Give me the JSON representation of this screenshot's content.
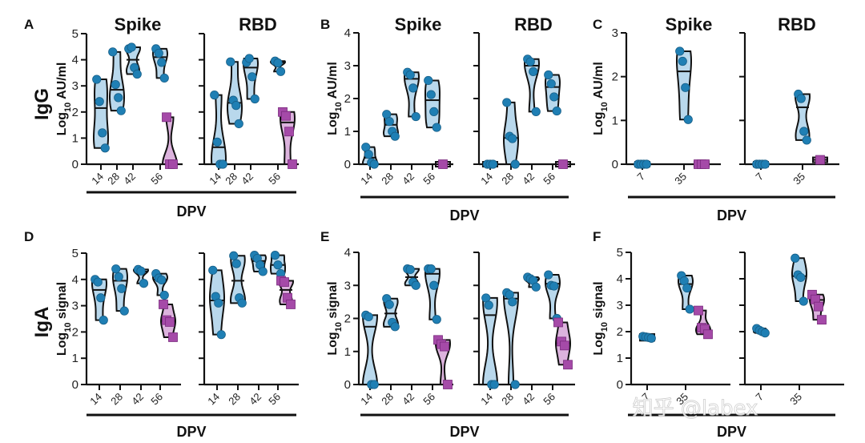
{
  "figure": {
    "row_labels": [
      "IgG",
      "IgA"
    ],
    "watermark": "知乎 @labex",
    "colors": {
      "circle_fill": "#1f7fb4",
      "circle_violin": "#b9d8ec",
      "square_fill": "#a54aa8",
      "square_violin": "#dcb3dd",
      "axis": "#111111"
    }
  },
  "chart_data": [
    {
      "type": "violin",
      "panel": "A",
      "row": "IgG",
      "ylabel": "Log10 AU/ml",
      "xlabel": "DPV",
      "ylim": [
        0,
        5
      ],
      "yticks": [
        0,
        1,
        2,
        3,
        4,
        5
      ],
      "show_tick_labels": true,
      "subplots": [
        {
          "title": "Spike",
          "categories": [
            "14",
            "28",
            "42",
            "56"
          ],
          "groups": [
            {
              "x": "14",
              "marker": "circle",
              "values": [
                3.25,
                2.4,
                1.2,
                0.62
              ],
              "median": 2.15
            },
            {
              "x": "28",
              "marker": "circle",
              "values": [
                4.3,
                3.05,
                2.55,
                2.05
              ],
              "median": 2.85
            },
            {
              "x": "42",
              "marker": "circle",
              "values": [
                4.42,
                4.48,
                3.7,
                3.45
              ],
              "median": 4.0
            },
            {
              "x": "56",
              "marker": "circle",
              "values": [
                4.42,
                4.25,
                3.9,
                3.3
              ],
              "median": 4.1
            },
            {
              "x": "56",
              "marker": "square",
              "values": [
                1.8,
                0.0,
                0.0
              ],
              "median": 0.0
            }
          ]
        },
        {
          "title": "RBD",
          "categories": [
            "14",
            "28",
            "42",
            "56"
          ],
          "groups": [
            {
              "x": "14",
              "marker": "circle",
              "values": [
                2.65,
                0.85,
                0.0,
                0.0
              ],
              "median": 0.65
            },
            {
              "x": "28",
              "marker": "circle",
              "values": [
                3.92,
                2.45,
                2.25,
                1.55
              ],
              "median": 2.35
            },
            {
              "x": "42",
              "marker": "circle",
              "values": [
                3.9,
                4.05,
                3.35,
                2.5
              ],
              "median": 3.7
            },
            {
              "x": "56",
              "marker": "circle",
              "values": [
                3.95,
                3.88,
                3.55
              ],
              "median": 3.9
            },
            {
              "x": "56",
              "marker": "square",
              "values": [
                2.0,
                1.85,
                1.25,
                0.0
              ],
              "median": 1.6
            }
          ]
        }
      ]
    },
    {
      "type": "violin",
      "panel": "B",
      "row": "IgG",
      "ylabel": "Log10 AU/ml",
      "xlabel": "DPV",
      "ylim": [
        0,
        4
      ],
      "yticks": [
        0,
        1,
        2,
        3,
        4
      ],
      "show_tick_labels": true,
      "subplots": [
        {
          "title": "Spike",
          "categories": [
            "14",
            "28",
            "42",
            "56"
          ],
          "groups": [
            {
              "x": "14",
              "marker": "circle",
              "values": [
                0.52,
                0.3,
                0.05,
                0.0
              ],
              "median": 0.2
            },
            {
              "x": "28",
              "marker": "circle",
              "values": [
                1.52,
                1.3,
                1.0,
                0.85
              ],
              "median": 1.2
            },
            {
              "x": "42",
              "marker": "circle",
              "values": [
                2.8,
                2.72,
                2.32,
                1.45
              ],
              "median": 2.6
            },
            {
              "x": "56",
              "marker": "circle",
              "values": [
                2.55,
                2.12,
                1.6,
                1.12
              ],
              "median": 1.95
            },
            {
              "x": "56",
              "marker": "square",
              "values": [
                0.0
              ],
              "median": 0.0
            }
          ]
        },
        {
          "title": "RBD",
          "categories": [
            "14",
            "28",
            "42",
            "56"
          ],
          "groups": [
            {
              "x": "14",
              "marker": "circle",
              "values": [
                0.0,
                0.0,
                0.0
              ],
              "median": 0.0
            },
            {
              "x": "28",
              "marker": "circle",
              "values": [
                1.88,
                0.85,
                0.78,
                0.0
              ],
              "median": 0.8
            },
            {
              "x": "42",
              "marker": "circle",
              "values": [
                3.2,
                3.12,
                2.82,
                1.6
              ],
              "median": 3.0
            },
            {
              "x": "56",
              "marker": "circle",
              "values": [
                2.72,
                2.45,
                2.05,
                1.62
              ],
              "median": 2.35
            },
            {
              "x": "56",
              "marker": "square",
              "values": [
                0.0
              ],
              "median": 0.0
            }
          ]
        }
      ]
    },
    {
      "type": "violin",
      "panel": "C",
      "row": "IgG",
      "ylabel": "Log10 AU/ml",
      "xlabel": "DPV",
      "ylim": [
        0,
        3
      ],
      "yticks": [
        0,
        1,
        2,
        3
      ],
      "show_tick_labels": true,
      "subplots": [
        {
          "title": "Spike",
          "categories": [
            "7",
            "35"
          ],
          "groups": [
            {
              "x": "7",
              "marker": "circle",
              "values": [
                0.0,
                0.0,
                0.0,
                0.0
              ],
              "median": 0.0
            },
            {
              "x": "35",
              "marker": "circle",
              "values": [
                2.58,
                2.35,
                1.75,
                1.02
              ],
              "median": 2.12
            },
            {
              "x": "35",
              "marker": "square",
              "values": [
                0.0,
                0.0,
                0.0
              ],
              "median": 0.0
            }
          ]
        },
        {
          "title": "RBD",
          "categories": [
            "7",
            "35"
          ],
          "groups": [
            {
              "x": "7",
              "marker": "circle",
              "values": [
                0.0,
                0.0,
                0.0,
                0.0
              ],
              "median": 0.0
            },
            {
              "x": "35",
              "marker": "circle",
              "values": [
                1.6,
                1.5,
                0.75,
                0.55
              ],
              "median": 1.3
            },
            {
              "x": "35",
              "marker": "square",
              "values": [
                0.1
              ],
              "median": 0.1
            }
          ]
        }
      ]
    },
    {
      "type": "violin",
      "panel": "D",
      "row": "IgA",
      "ylabel": "Log10 signal",
      "xlabel": "DPV",
      "ylim": [
        0,
        5
      ],
      "yticks": [
        0,
        1,
        2,
        3,
        4,
        5
      ],
      "show_tick_labels": true,
      "subplots": [
        {
          "title": "",
          "categories": [
            "14",
            "28",
            "42",
            "56"
          ],
          "groups": [
            {
              "x": "14",
              "marker": "circle",
              "values": [
                4.0,
                3.9,
                3.3,
                2.45
              ],
              "median": 3.6
            },
            {
              "x": "28",
              "marker": "circle",
              "values": [
                4.4,
                4.1,
                3.65,
                2.8
              ],
              "median": 3.95
            },
            {
              "x": "42",
              "marker": "circle",
              "values": [
                4.38,
                4.32,
                3.85
              ],
              "median": 4.3
            },
            {
              "x": "56",
              "marker": "circle",
              "values": [
                4.22,
                4.05,
                3.98,
                3.4
              ],
              "median": 4.0
            },
            {
              "x": "56",
              "marker": "square",
              "values": [
                3.05,
                2.45,
                2.38,
                1.8
              ],
              "median": 2.42
            }
          ]
        },
        {
          "title": "",
          "categories": [
            "14",
            "28",
            "42",
            "56"
          ],
          "groups": [
            {
              "x": "14",
              "marker": "circle",
              "values": [
                4.35,
                3.35,
                3.1,
                1.9
              ],
              "median": 3.2
            },
            {
              "x": "28",
              "marker": "circle",
              "values": [
                4.9,
                4.6,
                3.3,
                3.1
              ],
              "median": 3.95
            },
            {
              "x": "42",
              "marker": "circle",
              "values": [
                4.92,
                4.8,
                4.55,
                4.3
              ],
              "median": 4.7
            },
            {
              "x": "56",
              "marker": "circle",
              "values": [
                4.92,
                4.55,
                4.22
              ],
              "median": 4.55
            },
            {
              "x": "56",
              "marker": "square",
              "values": [
                3.95,
                3.9,
                3.3,
                3.05
              ],
              "median": 3.6
            }
          ]
        }
      ]
    },
    {
      "type": "violin",
      "panel": "E",
      "row": "IgA",
      "ylabel": "Log10 signal",
      "xlabel": "DPV",
      "ylim": [
        0,
        4
      ],
      "yticks": [
        0,
        1,
        2,
        3,
        4
      ],
      "show_tick_labels": true,
      "subplots": [
        {
          "title": "",
          "categories": [
            "14",
            "28",
            "42",
            "56"
          ],
          "groups": [
            {
              "x": "14",
              "marker": "circle",
              "values": [
                2.1,
                2.05,
                0.0,
                0.0
              ],
              "median": 1.75
            },
            {
              "x": "28",
              "marker": "circle",
              "values": [
                2.6,
                2.42,
                1.88,
                1.75
              ],
              "median": 2.15
            },
            {
              "x": "42",
              "marker": "circle",
              "values": [
                3.5,
                3.48,
                3.1,
                3.0
              ],
              "median": 3.25
            },
            {
              "x": "56",
              "marker": "circle",
              "values": [
                3.5,
                3.5,
                3.0,
                1.97
              ],
              "median": 3.35
            },
            {
              "x": "56",
              "marker": "square",
              "values": [
                1.35,
                1.22,
                1.15,
                0.0
              ],
              "median": 1.2
            }
          ]
        },
        {
          "title": "",
          "categories": [
            "14",
            "28",
            "42",
            "56"
          ],
          "groups": [
            {
              "x": "14",
              "marker": "circle",
              "values": [
                2.62,
                2.4,
                0.0,
                0.0
              ],
              "median": 2.1
            },
            {
              "x": "28",
              "marker": "circle",
              "values": [
                2.78,
                2.72,
                2.5,
                0.0
              ],
              "median": 2.6
            },
            {
              "x": "42",
              "marker": "circle",
              "values": [
                3.25,
                3.2,
                3.15,
                2.95
              ],
              "median": 3.18
            },
            {
              "x": "56",
              "marker": "circle",
              "values": [
                3.32,
                3.0,
                2.98,
                2.0
              ],
              "median": 3.05
            },
            {
              "x": "56",
              "marker": "square",
              "values": [
                1.88,
                1.3,
                1.18,
                0.6
              ],
              "median": 1.25
            }
          ]
        }
      ]
    },
    {
      "type": "violin",
      "panel": "F",
      "row": "IgA",
      "ylabel": "Log10 signal",
      "xlabel": "DPV",
      "ylim": [
        0,
        5
      ],
      "yticks": [
        0,
        1,
        2,
        3,
        4,
        5
      ],
      "show_tick_labels": true,
      "subplots": [
        {
          "title": "",
          "categories": [
            "7",
            "35"
          ],
          "groups": [
            {
              "x": "7",
              "marker": "circle",
              "values": [
                1.82,
                1.8,
                1.78,
                1.75
              ],
              "median": 1.8
            },
            {
              "x": "35",
              "marker": "circle",
              "values": [
                4.12,
                3.92,
                3.65,
                2.85
              ],
              "median": 3.8
            },
            {
              "x": "35",
              "marker": "square",
              "values": [
                2.8,
                2.15,
                2.1,
                1.9
              ],
              "median": 2.05
            }
          ]
        },
        {
          "title": "",
          "categories": [
            "7",
            "35"
          ],
          "groups": [
            {
              "x": "7",
              "marker": "circle",
              "values": [
                2.12,
                2.05,
                2.0,
                1.95
              ],
              "median": 2.05
            },
            {
              "x": "35",
              "marker": "circle",
              "values": [
                4.78,
                4.15,
                4.05,
                3.15
              ],
              "median": 4.1
            },
            {
              "x": "35",
              "marker": "square",
              "values": [
                3.4,
                3.22,
                2.95,
                2.45
              ],
              "median": 3.2
            }
          ]
        }
      ]
    }
  ]
}
